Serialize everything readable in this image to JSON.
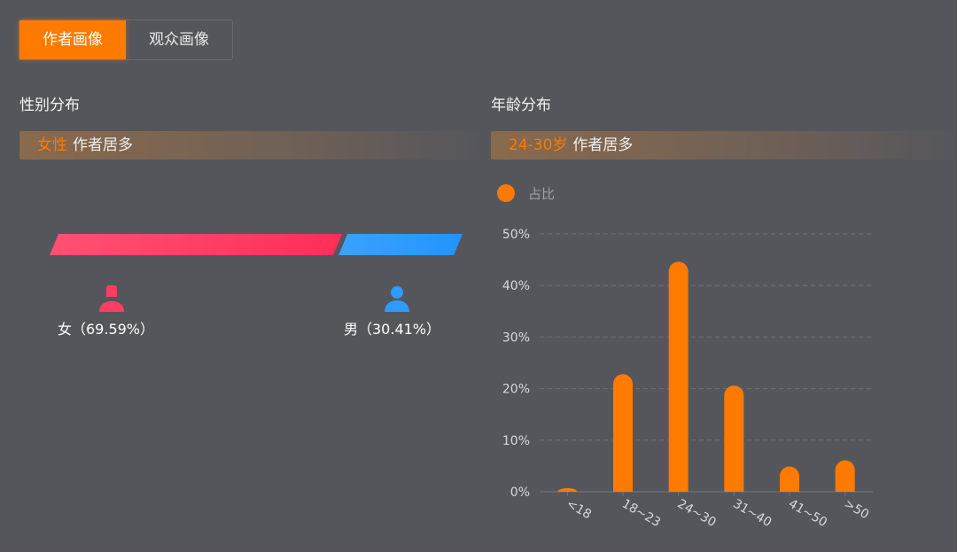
{
  "tabs": [
    {
      "label": "作者画像",
      "active": true
    },
    {
      "label": "观众画像",
      "active": false
    }
  ],
  "gender": {
    "title": "性别分布",
    "banner_highlight": "女性",
    "banner_text": "作者居多",
    "female": {
      "label": "女（69.59%）",
      "value": 69.59,
      "color": "#ff3d65"
    },
    "male": {
      "label": "男（30.41%）",
      "value": 30.41,
      "color": "#2d9bff"
    }
  },
  "age": {
    "title": "年龄分布",
    "banner_highlight": "24-30岁",
    "banner_text": "作者居多"
  },
  "chart_data": {
    "type": "bar",
    "legend": [
      "占比"
    ],
    "legend_placement": "top-left",
    "color": "#ff7a00",
    "categories": [
      "<18",
      "18~23",
      "24~30",
      "31~40",
      "41~50",
      ">50"
    ],
    "series": [
      {
        "name": "占比",
        "values": [
          0.7,
          22.8,
          44.6,
          20.6,
          4.9,
          6.1
        ]
      }
    ],
    "ylim": [
      0,
      50
    ],
    "yticks": [
      "0%",
      "10%",
      "20%",
      "30%",
      "40%",
      "50%"
    ],
    "grid": true
  }
}
